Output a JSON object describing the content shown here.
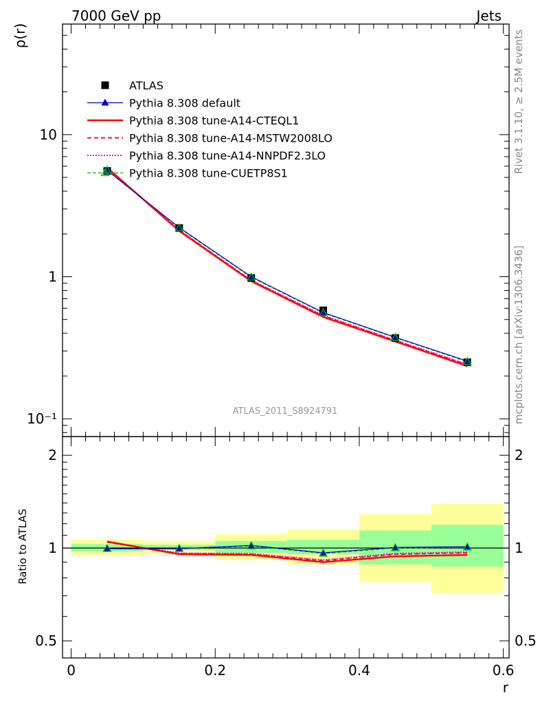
{
  "header": {
    "left": "7000 GeV pp",
    "right": "Jets"
  },
  "side_labels": {
    "rivet": "Rivet 3.1.10, ≥ 2.5M events",
    "mcplots": "mcplots.cern.ch [arXiv:1306.3436]"
  },
  "analysis_id": "ATLAS_2011_S8924791",
  "chart_data": [
    {
      "type": "line",
      "panel": "main",
      "ylabel": "ρ(r)",
      "yscale": "log",
      "ylim": [
        0.075,
        60
      ],
      "xlim": [
        -0.012,
        0.608
      ],
      "y_tick_labels": [
        "10⁻¹",
        "1",
        "10"
      ],
      "x": [
        0.05,
        0.15,
        0.25,
        0.35,
        0.45,
        0.55
      ],
      "series": [
        {
          "name": "ATLAS",
          "color": "#000000",
          "values": [
            5.55,
            2.2,
            0.98,
            0.58,
            0.37,
            0.25
          ]
        },
        {
          "name": "Pythia 8.308 default",
          "color": "#0000cc",
          "values": [
            5.6,
            2.22,
            1.0,
            0.56,
            0.375,
            0.255
          ]
        },
        {
          "name": "Pythia 8.308 tune-A14-CTEQL1",
          "color": "#ff0000",
          "values": [
            5.85,
            2.1,
            0.93,
            0.52,
            0.35,
            0.235
          ]
        },
        {
          "name": "Pythia 8.308 tune-A14-MSTW2008LO",
          "color": "#ff0066",
          "values": [
            5.8,
            2.12,
            0.94,
            0.53,
            0.355,
            0.24
          ]
        },
        {
          "name": "Pythia 8.308 tune-A14-NNPDF2.3LO",
          "color": "#ff00cc",
          "values": [
            5.8,
            2.13,
            0.945,
            0.535,
            0.358,
            0.242
          ]
        },
        {
          "name": "Pythia 8.308 tune-CUETP8S1",
          "color": "#00bb00",
          "values": [
            5.6,
            2.2,
            0.99,
            0.555,
            0.372,
            0.252
          ]
        }
      ]
    },
    {
      "type": "line",
      "panel": "ratio",
      "ylabel": "Ratio to ATLAS",
      "xlabel": "r",
      "yscale": "log",
      "ylim": [
        0.44,
        2.3
      ],
      "xlim": [
        -0.012,
        0.608
      ],
      "y_tick_labels": [
        "0.5",
        "1",
        "2"
      ],
      "x_tick_labels": [
        "0",
        "0.2",
        "0.4",
        "0.6"
      ],
      "x": [
        0.05,
        0.15,
        0.25,
        0.35,
        0.45,
        0.55
      ],
      "bands": {
        "bins": [
          [
            0.0,
            0.1
          ],
          [
            0.1,
            0.2
          ],
          [
            0.2,
            0.3
          ],
          [
            0.3,
            0.4
          ],
          [
            0.4,
            0.5
          ],
          [
            0.5,
            0.6
          ]
        ],
        "stat": [
          [
            0.975,
            1.03
          ],
          [
            0.985,
            1.025
          ],
          [
            0.965,
            1.055
          ],
          [
            0.955,
            1.065
          ],
          [
            0.885,
            1.14
          ],
          [
            0.87,
            1.19
          ]
        ],
        "total": [
          [
            0.945,
            1.065
          ],
          [
            0.955,
            1.055
          ],
          [
            0.915,
            1.11
          ],
          [
            0.885,
            1.15
          ],
          [
            0.775,
            1.29
          ],
          [
            0.715,
            1.39
          ]
        ]
      },
      "series": [
        {
          "name": "Pythia 8.308 default",
          "color": "#0000cc",
          "values": [
            0.995,
            0.995,
            1.02,
            0.965,
            1.005,
            1.01
          ]
        },
        {
          "name": "Pythia 8.308 tune-A14-CTEQL1",
          "color": "#ff0000",
          "values": [
            1.05,
            0.955,
            0.95,
            0.9,
            0.94,
            0.95
          ]
        },
        {
          "name": "Pythia 8.308 tune-A14-MSTW2008LO",
          "color": "#ff0066",
          "values": [
            1.045,
            0.96,
            0.955,
            0.91,
            0.955,
            0.965
          ]
        },
        {
          "name": "Pythia 8.308 tune-A14-NNPDF2.3LO",
          "color": "#ff00cc",
          "values": [
            1.045,
            0.962,
            0.96,
            0.915,
            0.96,
            0.97
          ]
        },
        {
          "name": "Pythia 8.308 tune-CUETP8S1",
          "color": "#00bb00",
          "values": [
            0.995,
            0.995,
            1.015,
            0.96,
            1.0,
            1.005
          ]
        }
      ]
    }
  ]
}
